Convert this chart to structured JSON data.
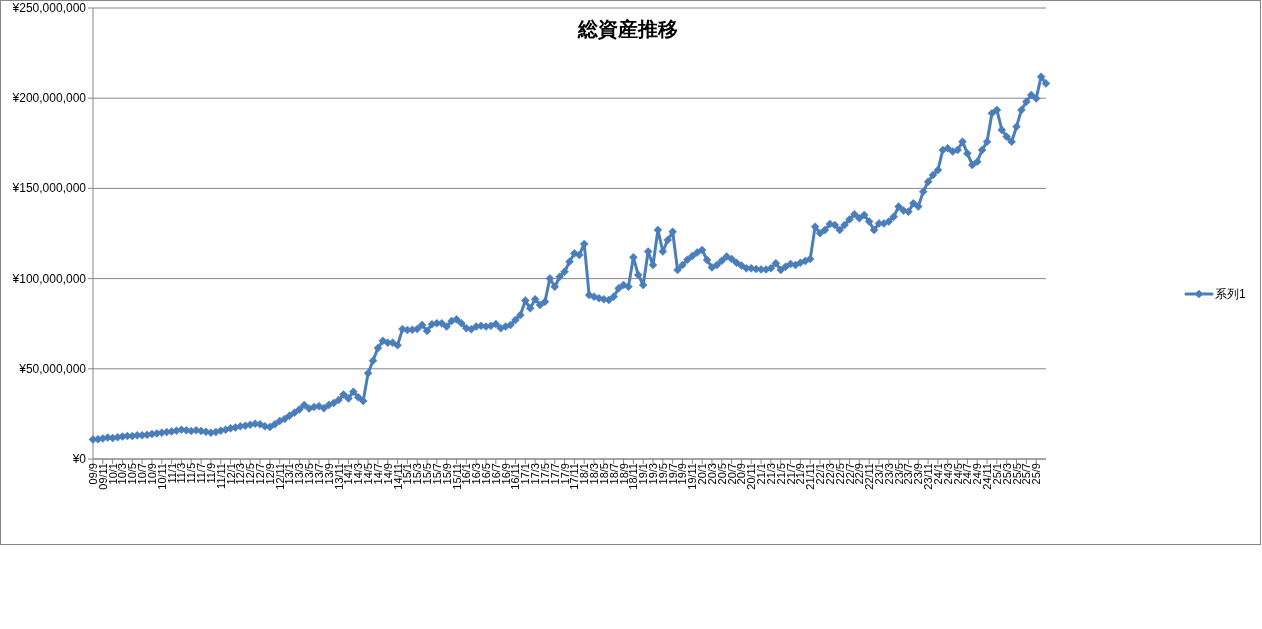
{
  "chart_data": {
    "type": "line",
    "title": "総資産推移",
    "categories": [
      "09/9",
      null,
      "09/11",
      null,
      "10/1",
      null,
      "10/3",
      null,
      "10/5",
      null,
      "10/7",
      null,
      "10/9",
      null,
      "10/11",
      null,
      "11/1",
      null,
      "11/3",
      null,
      "11/5",
      null,
      "11/7",
      null,
      "11/9",
      null,
      "11/11",
      null,
      "12/1",
      null,
      "12/3",
      null,
      "12/5",
      null,
      "12/7",
      null,
      "12/9",
      null,
      "12/11",
      null,
      "13/1",
      null,
      "13/3",
      null,
      "13/5",
      null,
      "13/7",
      null,
      "13/9",
      null,
      "13/11",
      null,
      "14/1",
      null,
      "14/3",
      null,
      "14/5",
      null,
      "14/7",
      null,
      "14/9",
      null,
      "14/11",
      null,
      "15/1",
      null,
      "15/3",
      null,
      "15/5",
      null,
      "15/7",
      null,
      "15/9",
      null,
      "15/11",
      null,
      "16/1",
      null,
      "16/3",
      null,
      "16/5",
      null,
      "16/7",
      null,
      "16/9",
      null,
      "16/11",
      null,
      "17/1",
      null,
      "17/3",
      null,
      "17/5",
      null,
      "17/7",
      null,
      "17/9",
      null,
      "17/11",
      null,
      "18/1",
      null,
      "18/3",
      null,
      "18/5",
      null,
      "18/7",
      null,
      "18/9",
      null,
      "18/11",
      null,
      "19/1",
      null,
      "19/3",
      null,
      "19/5",
      null,
      "19/7",
      null,
      "19/9",
      null,
      "19/11",
      null,
      "20/1",
      null,
      "20/3",
      null,
      "20/5",
      null,
      "20/7",
      null,
      "20/9",
      null,
      "20/11",
      null,
      "21/1",
      null,
      "21/3",
      null,
      "21/5",
      null,
      "21/7",
      null,
      "21/9",
      null,
      "21/11",
      null,
      "22/1",
      null,
      "22/3",
      null,
      "22/5",
      null,
      "22/7",
      null,
      "22/9",
      null,
      "22/11",
      null,
      "23/1",
      null,
      "23/3",
      null,
      "23/5",
      null,
      "23/7",
      null,
      "23/9",
      null,
      "23/11",
      null,
      "24/1",
      null,
      "24/3",
      null,
      "24/5",
      null,
      "24/7",
      null,
      "24/9",
      null,
      "24/11",
      null,
      "25/1",
      null,
      "25/3",
      null,
      "25/5",
      null,
      "25/7",
      null,
      "25/9",
      null,
      null
    ],
    "series": [
      {
        "name": "系列1",
        "color": "#4a7ebb",
        "values": [
          10800000,
          11000000,
          11400000,
          11900000,
          11600000,
          12100000,
          12500000,
          12700000,
          12700000,
          13100000,
          13100000,
          13400000,
          13800000,
          14200000,
          14600000,
          14900000,
          15300000,
          15700000,
          16200000,
          15900000,
          15500000,
          15900000,
          15500000,
          15100000,
          14600000,
          14900000,
          15700000,
          16200000,
          17000000,
          17500000,
          18100000,
          18500000,
          19000000,
          19600000,
          19200000,
          18100000,
          17700000,
          19200000,
          21100000,
          22200000,
          24000000,
          25700000,
          27500000,
          29900000,
          28000000,
          28800000,
          29300000,
          28100000,
          30000000,
          31000000,
          32700000,
          35800000,
          33600000,
          37300000,
          34200000,
          32200000,
          47500000,
          54500000,
          61500000,
          65500000,
          64500000,
          64500000,
          63000000,
          72000000,
          71500000,
          71600000,
          72000000,
          74300000,
          71000000,
          74700000,
          75200000,
          75200000,
          73400000,
          76500000,
          77400000,
          75200000,
          72500000,
          71900000,
          73400000,
          73800000,
          73400000,
          73800000,
          74900000,
          72500000,
          73400000,
          74300000,
          77100000,
          79800000,
          87800000,
          83500000,
          88500000,
          85400000,
          87200000,
          100100000,
          95500000,
          101000000,
          103800000,
          109400000,
          114000000,
          113100000,
          119200000,
          90900000,
          90000000,
          89100000,
          88500000,
          88100000,
          90000000,
          94600000,
          96500000,
          95500000,
          111800000,
          102000000,
          96500000,
          115000000,
          107500000,
          127000000,
          115000000,
          121400000,
          126000000,
          104800000,
          107500000,
          110500000,
          112500000,
          114500000,
          115900000,
          110300000,
          106200000,
          107500000,
          109900000,
          112200000,
          110900000,
          108800000,
          107200000,
          105700000,
          105700000,
          105300000,
          105100000,
          105100000,
          105700000,
          108500000,
          104800000,
          106600000,
          108100000,
          107500000,
          108800000,
          109800000,
          110900000,
          128800000,
          125100000,
          126900000,
          130300000,
          129700000,
          126900000,
          129700000,
          132800000,
          135700000,
          133400000,
          135300000,
          131600000,
          126900000,
          130600000,
          130600000,
          131600000,
          134300000,
          139900000,
          137700000,
          137100000,
          141700000,
          139900000,
          148200000,
          153700000,
          157400000,
          160200000,
          171300000,
          172200000,
          170400000,
          171300000,
          175900000,
          169400000,
          163000000,
          164800000,
          171300000,
          175900000,
          191600000,
          193500000,
          182400000,
          178700000,
          175900000,
          184200000,
          193500000,
          198100000,
          201800000,
          199900000,
          211900000,
          208200000
        ]
      }
    ],
    "ylim": [
      0,
      250000000
    ],
    "yticks": [
      {
        "value": 0,
        "label": "¥0"
      },
      {
        "value": 50000000,
        "label": "¥50,000,000"
      },
      {
        "value": 100000000,
        "label": "¥100,000,000"
      },
      {
        "value": 150000000,
        "label": "¥150,000,000"
      },
      {
        "value": 200000000,
        "label": "¥200,000,000"
      },
      {
        "value": 250000000,
        "label": "¥250,000,000"
      }
    ],
    "grid": "y",
    "legend": "right",
    "marker": "diamond"
  }
}
